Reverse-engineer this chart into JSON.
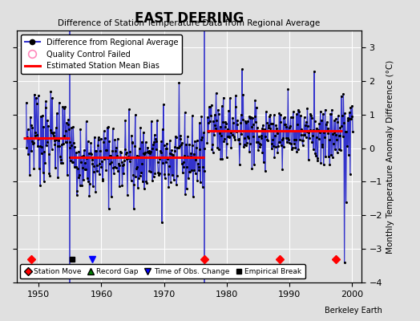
{
  "title": "EAST DEERING",
  "subtitle": "Difference of Station Temperature Data from Regional Average",
  "ylabel": "Monthly Temperature Anomaly Difference (°C)",
  "xlim": [
    1946.5,
    2001.5
  ],
  "ylim": [
    -4,
    3.5
  ],
  "yticks": [
    -4,
    -3,
    -2,
    -1,
    0,
    1,
    2,
    3
  ],
  "xticks": [
    1950,
    1960,
    1970,
    1980,
    1990,
    2000
  ],
  "background_color": "#e0e0e0",
  "plot_bg_color": "#e0e0e0",
  "grid_color": "#ffffff",
  "segments": [
    {
      "x_start": 1947.5,
      "x_end": 1955.0,
      "bias": 0.3
    },
    {
      "x_start": 1955.0,
      "x_end": 1976.5,
      "bias": -0.28
    },
    {
      "x_start": 1976.8,
      "x_end": 1998.5,
      "bias": 0.52
    }
  ],
  "vlines": [
    1955.0,
    1976.5
  ],
  "station_moves": [
    1948.8,
    1976.5,
    1988.5,
    1997.5
  ],
  "empirical_breaks": [
    1955.3
  ],
  "obs_changes": [
    1958.5
  ],
  "record_gaps": [],
  "line_color": "#3333cc",
  "dot_color": "#000000",
  "bias_color": "#ff0000",
  "vline_color": "#3333cc",
  "watermark": "Berkeley Earth",
  "seed1": 7,
  "seed2": 42,
  "seed3": 13,
  "seg1_start": 1948.0,
  "seg1_end": 1955.0,
  "seg1_bias": 0.3,
  "seg1_std": 0.62,
  "seg2_start": 1955.0,
  "seg2_end": 1976.5,
  "seg2_bias": -0.28,
  "seg2_std": 0.58,
  "seg3_start": 1976.9,
  "seg3_end": 2000.2,
  "seg3_bias": 0.52,
  "seg3_std": 0.52
}
